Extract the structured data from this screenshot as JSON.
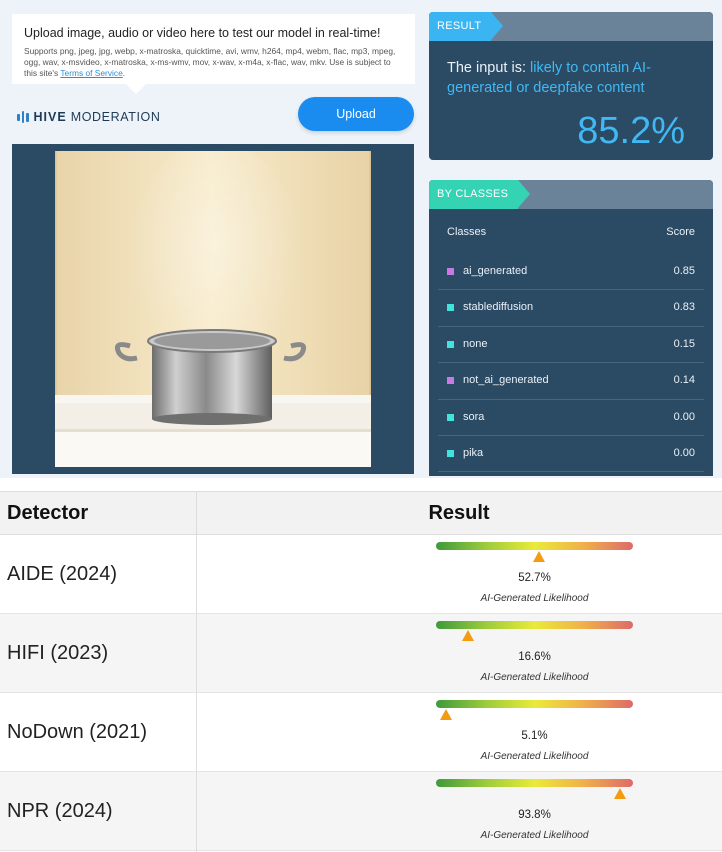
{
  "upload": {
    "title": "Upload image, audio or video here to test our model in real-time!",
    "description": "Supports png, jpeg, jpg, webp, x-matroska, quicktime, avi, wmv, h264, mp4, webm, flac, mp3, mpeg, ogg, wav, x-msvideo, x-matroska, x-ms-wmv, mov, x-wav, x-m4a, x-flac, wav, mkv. Use is subject to this site's",
    "tos_link": "Terms of Service",
    "tos_suffix": ".",
    "button_label": "Upload"
  },
  "logo": {
    "brand": "HIVE",
    "product": "MODERATION"
  },
  "result": {
    "tag": "RESULT",
    "prefix": "The input is: ",
    "verdict": "likely to contain AI-generated or deepfake content",
    "score": "85.2%"
  },
  "classes": {
    "tag": "BY CLASSES",
    "col_class": "Classes",
    "col_score": "Score",
    "rows": [
      {
        "name": "ai_generated",
        "score": "0.85",
        "color": "#c77ae0"
      },
      {
        "name": "stablediffusion",
        "score": "0.83",
        "color": "#41e3dc"
      },
      {
        "name": "none",
        "score": "0.15",
        "color": "#41e3dc"
      },
      {
        "name": "not_ai_generated",
        "score": "0.14",
        "color": "#c77ae0"
      },
      {
        "name": "sora",
        "score": "0.00",
        "color": "#41e3dc"
      },
      {
        "name": "pika",
        "score": "0.00",
        "color": "#41e3dc"
      }
    ]
  },
  "table": {
    "col_detector": "Detector",
    "col_result": "Result",
    "rows": [
      {
        "detector": "AIDE (2024)",
        "pct_text": "52.7%",
        "likelihood": 0.527,
        "label": "AI-Generated Likelihood"
      },
      {
        "detector": "HIFI (2023)",
        "pct_text": "16.6%",
        "likelihood": 0.166,
        "label": "AI-Generated Likelihood"
      },
      {
        "detector": "NoDown (2021)",
        "pct_text": "5.1%",
        "likelihood": 0.051,
        "label": "AI-Generated Likelihood"
      },
      {
        "detector": "NPR (2024)",
        "pct_text": "93.8%",
        "likelihood": 0.938,
        "label": "AI-Generated Likelihood"
      }
    ]
  },
  "colors": {
    "panel": "#2b4a63",
    "accent_blue": "#40b8f3",
    "accent_green": "#33d3b4",
    "marker": "#f39c12"
  }
}
